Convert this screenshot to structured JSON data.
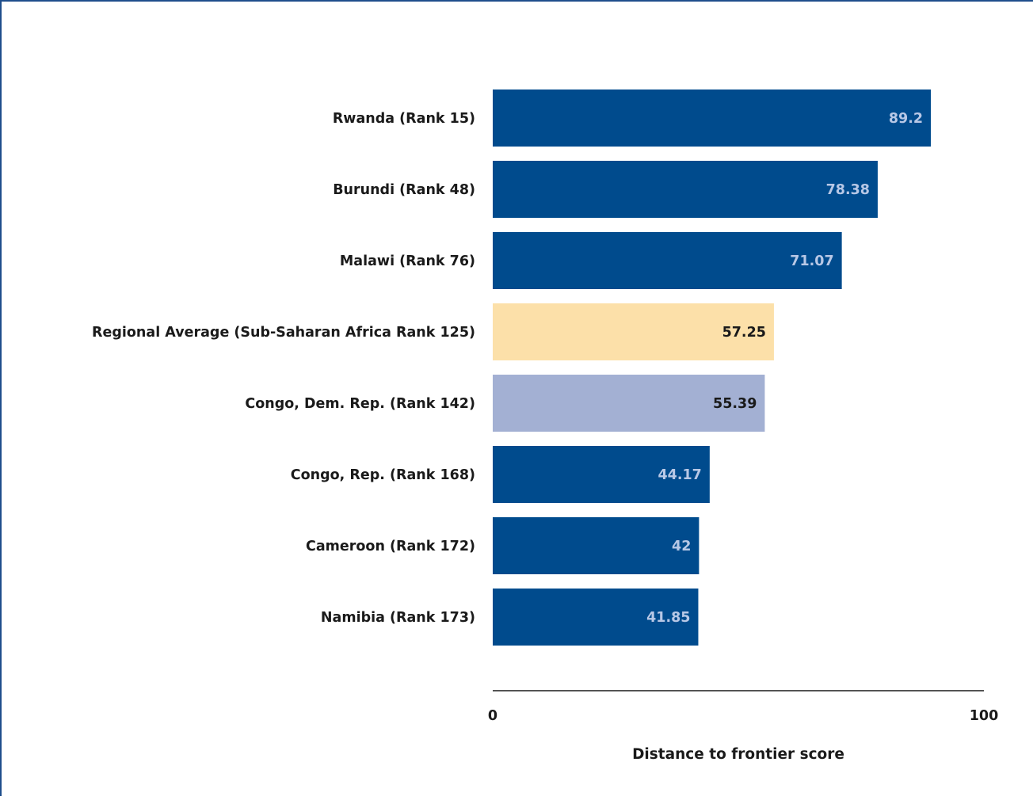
{
  "chart_data": {
    "type": "bar",
    "orientation": "horizontal",
    "categories": [
      "Rwanda (Rank 15)",
      "Burundi (Rank 48)",
      "Malawi (Rank 76)",
      "Regional Average (Sub-Saharan Africa Rank 125)",
      "Congo, Dem. Rep. (Rank 142)",
      "Congo, Rep. (Rank 168)",
      "Cameroon (Rank 172)",
      "Namibia (Rank 173)"
    ],
    "values": [
      89.2,
      78.38,
      71.07,
      57.25,
      55.39,
      44.17,
      42,
      41.85
    ],
    "value_labels": [
      "89.2",
      "78.38",
      "71.07",
      "57.25",
      "55.39",
      "44.17",
      "42",
      "41.85"
    ],
    "title": "",
    "xlabel": "Distance to frontier score",
    "ylabel": "",
    "xlim": [
      0,
      100
    ],
    "tick_labels": [
      "0",
      "100"
    ],
    "grid": false,
    "colors": {
      "default_bar": "#004b8d",
      "regional_average_bar": "#fce0a9",
      "highlight_bar": "#a3b0d3",
      "light_value_text": "#b8c8e6",
      "dark_value_text": "#1a1a1a",
      "frame_border": "#1f4e8c"
    },
    "bar_styles": [
      "default",
      "default",
      "default",
      "regional_average",
      "highlight",
      "default",
      "default",
      "default"
    ]
  }
}
